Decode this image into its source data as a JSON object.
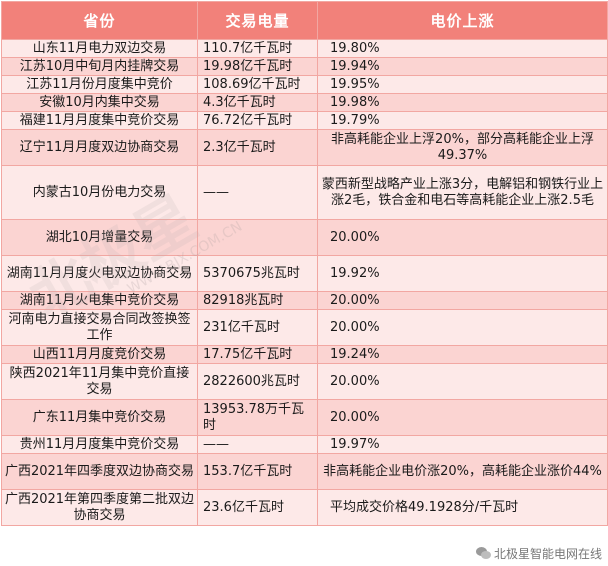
{
  "table": {
    "headers": [
      "省份",
      "交易电量",
      "电价上涨"
    ],
    "rows": [
      {
        "province": "山东11月电力双边交易",
        "volume": "110.7亿千瓦时",
        "rise": "19.80%"
      },
      {
        "province": "江苏10月中旬月内挂牌交易",
        "volume": "19.98亿千瓦时",
        "rise": "19.94%"
      },
      {
        "province": "江苏11月份月度集中竞价",
        "volume": "108.69亿千瓦时",
        "rise": "19.95%"
      },
      {
        "province": "安徽10月内集中交易",
        "volume": "4.3亿千瓦时",
        "rise": "19.98%"
      },
      {
        "province": "福建11月月度集中竞价交易",
        "volume": "76.72亿千瓦时",
        "rise": "19.79%"
      },
      {
        "province": "辽宁11月月度双边协商交易",
        "volume": "2.3亿千瓦时",
        "rise": "非高耗能企业上浮20%，部分高耗能企业上浮49.37%"
      },
      {
        "province": "内蒙古10月份电力交易",
        "volume": "——",
        "rise": "蒙西新型战略产业上涨3分，电解铝和钢铁行业上涨2毛，铁合金和电石等高耗能企业上涨2.5毛"
      },
      {
        "province": "湖北10月增量交易",
        "volume": "",
        "rise": "20.00%"
      },
      {
        "province": "湖南11月月度火电双边协商交易",
        "volume": "5370675兆瓦时",
        "rise": "19.92%"
      },
      {
        "province": "湖南11月火电集中竞价交易",
        "volume": "82918兆瓦时",
        "rise": "20.00%"
      },
      {
        "province": "河南电力直接交易合同改签换签工作",
        "volume": "231亿千瓦时",
        "rise": "20.00%"
      },
      {
        "province": "山西11月月度竞价交易",
        "volume": "17.75亿千瓦时",
        "rise": "19.24%"
      },
      {
        "province": "陕西2021年11月集中竞价直接交易",
        "volume": "2822600兆瓦时",
        "rise": "20.00%"
      },
      {
        "province": "广东11月集中竞价交易",
        "volume": "13953.78万千瓦时",
        "rise": "20.00%"
      },
      {
        "province": "贵州11月月度集中竞价交易",
        "volume": "——",
        "rise": "19.97%"
      },
      {
        "province": "广西2021年四季度双边协商交易",
        "volume": "153.7亿千瓦时",
        "rise": "非高耗能企业电价涨20%，高耗能企业涨价44%"
      },
      {
        "province": "广西2021年第四季度第二批双边协商交易",
        "volume": "23.6亿千瓦时",
        "rise": "平均成交价格49.1928分/千瓦时"
      }
    ]
  },
  "watermark": {
    "main": "北极星",
    "url": "WWW.BJX.COM.CN"
  },
  "footer": {
    "icon": "wechat-icon",
    "label": "北极星智能电网在线"
  }
}
